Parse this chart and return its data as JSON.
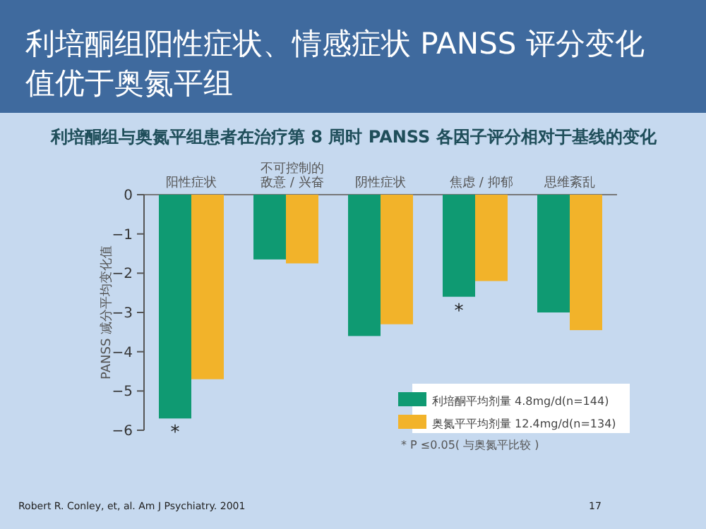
{
  "chart_data": {
    "type": "bar",
    "title": "利培酮组阳性症状、情感症状 PANSS 评分变化值优于奥氮平组",
    "subtitle": "利培酮组与奥氮平组患者在治疗第 8 周时 PANSS 各因子评分相对于基线的变化",
    "ylabel": "PANSS 减分平均变化值",
    "categories": [
      "阳性症状",
      "不可控制的敌意 / 兴奋",
      "阴性症状",
      "焦虑 / 抑郁",
      "思维紊乱"
    ],
    "series": [
      {
        "name": "利培酮平均剂量 4.8mg/d(n=144)",
        "color": "#0f9a72",
        "values": [
          -5.7,
          -1.65,
          -3.6,
          -2.6,
          -3.0
        ]
      },
      {
        "name": "奥氮平平均剂量 12.4mg/d(n=134)",
        "color": "#f2b32a",
        "values": [
          -4.7,
          -1.75,
          -3.3,
          -2.2,
          -3.45
        ]
      }
    ],
    "ylim": [
      -6,
      0
    ],
    "yticks": [
      {
        "value": -6,
        "label": "−6"
      },
      {
        "value": -5,
        "label": "−5"
      },
      {
        "value": -4,
        "label": "−4"
      },
      {
        "value": -3,
        "label": "−3"
      },
      {
        "value": -2,
        "label": "−2"
      },
      {
        "value": -1,
        "label": "−1"
      },
      0
    ],
    "legend": "bottom right",
    "annotations": [
      {
        "text": "*",
        "x": "阳性症状",
        "y": -5.7
      },
      {
        "text": "*",
        "x": "焦虑 / 抑郁",
        "y": -2.6
      },
      "* P ≤0.05( 与奥氮平比较 )",
      "Robert R. Conley, et, al. Am J Psychiatry. 2001",
      "17"
    ]
  }
}
